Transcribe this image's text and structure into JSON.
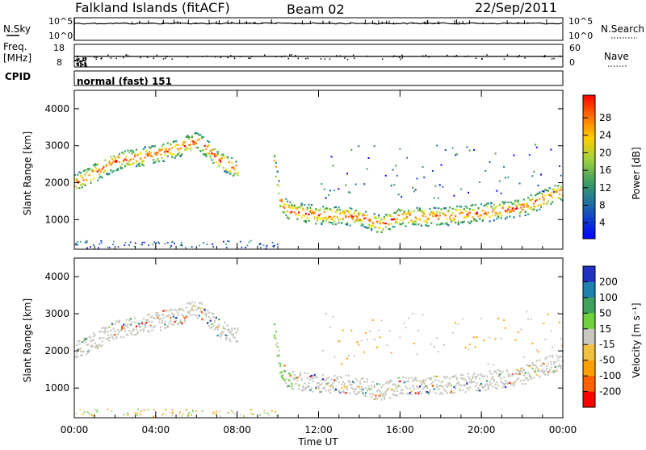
{
  "header": {
    "title": "Falkland Islands (fitACF)",
    "beam": "Beam 02",
    "date": "22/Sep/2011"
  },
  "panels": {
    "nsky": {
      "label": "N.Sky",
      "ticks_left": [
        "10^5",
        "10^0"
      ],
      "ticks_right": [
        "10^5",
        "10^0"
      ],
      "right_label": "N.Search"
    },
    "freq": {
      "label_top": "Freq.",
      "label_bottom": "[MHz]",
      "ticks_left": [
        "18",
        "8"
      ],
      "ticks_right": [
        "60",
        "0"
      ],
      "right_label": "Nave"
    },
    "cpid": {
      "label": "CPID",
      "value": "normal (fast) 151"
    }
  },
  "chart_data": [
    {
      "type": "heatmap",
      "quantity": "Power",
      "ylabel": "Slant Range [km]",
      "xlabel": "",
      "ylim": [
        200,
        4500
      ],
      "yticks": [
        1000,
        2000,
        3000,
        4000
      ],
      "xlim_hours": [
        0,
        24
      ],
      "colorbar": {
        "label": "Power [dB]",
        "ticks": [
          "28",
          "24",
          "20",
          "16",
          "12",
          "8",
          "4"
        ],
        "colors": [
          "#ff0000",
          "#ff7000",
          "#ffa000",
          "#ffe000",
          "#a0d040",
          "#40a040",
          "#30a080",
          "#2070a0",
          "#1040c0",
          "#0000ff"
        ]
      },
      "bands": [
        {
          "name": "early",
          "points": [
            [
              0.0,
              2000
            ],
            [
              1.0,
              2300
            ],
            [
              2.0,
              2600
            ],
            [
              3.0,
              2700
            ],
            [
              4.0,
              2800
            ],
            [
              5.0,
              2950
            ],
            [
              6.0,
              3150
            ],
            [
              6.5,
              2950
            ],
            [
              7.0,
              2650
            ],
            [
              8.0,
              2400
            ]
          ]
        },
        {
          "name": "main",
          "points": [
            [
              9.8,
              2600
            ],
            [
              10.1,
              1500
            ],
            [
              10.5,
              1250
            ],
            [
              12.0,
              1150
            ],
            [
              14.0,
              1100
            ],
            [
              15.0,
              900
            ],
            [
              16.0,
              1100
            ],
            [
              18.0,
              1100
            ],
            [
              20.0,
              1200
            ],
            [
              22.0,
              1350
            ],
            [
              24.0,
              1800
            ]
          ]
        }
      ]
    },
    {
      "type": "heatmap",
      "quantity": "Velocity",
      "ylabel": "Slant Range [km]",
      "xlabel": "Time UT",
      "ylim": [
        200,
        4500
      ],
      "yticks": [
        1000,
        2000,
        3000,
        4000
      ],
      "xlim_hours": [
        0,
        24
      ],
      "colorbar": {
        "label": "Velocity [m s⁻¹]",
        "ticks": [
          "200",
          "100",
          "50",
          "15",
          "-15",
          "-50",
          "-100",
          "-200"
        ],
        "colors": [
          "#2030c0",
          "#2080b0",
          "#40a060",
          "#70d040",
          "#c8c8c0",
          "#f0c040",
          "#ffa000",
          "#ff6000",
          "#ff0000"
        ]
      }
    }
  ],
  "xaxis": {
    "ticks": [
      "00:00",
      "04:00",
      "08:00",
      "12:00",
      "16:00",
      "20:00",
      "00:00"
    ],
    "label": "Time UT"
  }
}
